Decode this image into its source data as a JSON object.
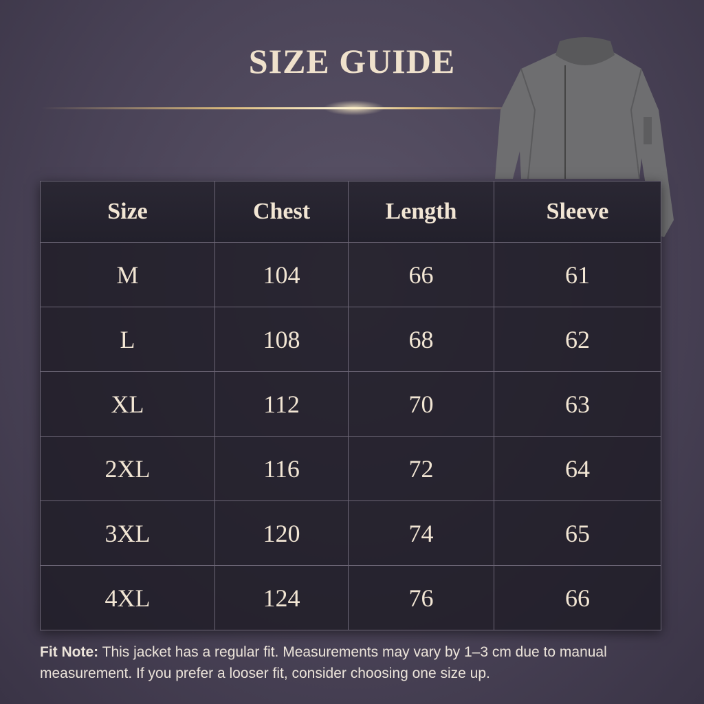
{
  "title": "SIZE GUIDE",
  "table": {
    "headers": [
      "Size",
      "Chest",
      "Length",
      "Sleeve"
    ],
    "rows": [
      [
        "M",
        "104",
        "66",
        "61"
      ],
      [
        "L",
        "108",
        "68",
        "62"
      ],
      [
        "XL",
        "112",
        "70",
        "63"
      ],
      [
        "2XL",
        "116",
        "72",
        "64"
      ],
      [
        "3XL",
        "120",
        "74",
        "65"
      ],
      [
        "4XL",
        "124",
        "76",
        "66"
      ]
    ]
  },
  "note": {
    "label": "Fit Note:",
    "text": " This jacket has a regular fit. Measurements may vary by 1–3 cm due to manual measurement. If you prefer a looser fit, consider choosing one size up."
  },
  "colors": {
    "accent": "#d9b97c",
    "text": "#f2e6d4",
    "background": "#4a4357"
  },
  "image": "gray-bomber-jacket"
}
